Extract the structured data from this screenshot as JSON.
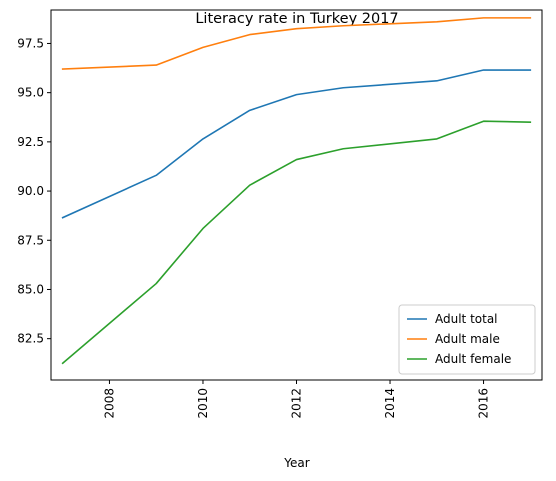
{
  "chart_data": {
    "type": "line",
    "title": "Literacy rate in Turkey 2017",
    "xlabel": "Year",
    "ylabel": "",
    "xlim": [
      2006.75,
      2017.25
    ],
    "ylim": [
      80.4,
      99.2
    ],
    "xticks": [
      2008,
      2010,
      2012,
      2014,
      2016
    ],
    "xtick_labels": [
      "2008",
      "2010",
      "2012",
      "2014",
      "2016"
    ],
    "yticks": [
      82.5,
      85.0,
      87.5,
      90.0,
      92.5,
      95.0,
      97.5
    ],
    "ytick_labels": [
      "82.5",
      "85.0",
      "87.5",
      "90.0",
      "92.5",
      "95.0",
      "97.5"
    ],
    "legend_position": "lower-right",
    "grid": false,
    "x": [
      2007,
      2009,
      2010,
      2011,
      2012,
      2013,
      2015,
      2016,
      2017
    ],
    "series": [
      {
        "name": "Adult total",
        "color": "#1f77b4",
        "values": [
          88.65,
          90.8,
          92.65,
          94.1,
          94.9,
          95.25,
          95.6,
          96.15,
          96.15
        ]
      },
      {
        "name": "Adult male",
        "color": "#ff7f0e",
        "values": [
          96.2,
          96.4,
          97.3,
          97.95,
          98.25,
          98.4,
          98.6,
          98.8,
          98.8
        ]
      },
      {
        "name": "Adult female",
        "color": "#2ca02c",
        "values": [
          81.25,
          85.3,
          88.1,
          90.3,
          91.6,
          92.15,
          92.65,
          93.55,
          93.5
        ]
      }
    ]
  }
}
